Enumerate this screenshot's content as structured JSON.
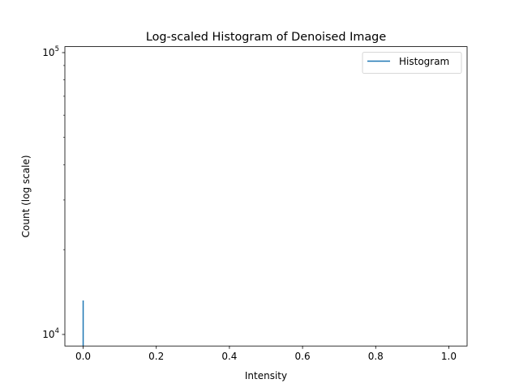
{
  "chart_data": {
    "type": "line",
    "title": "Log-scaled Histogram of Denoised Image",
    "xlabel": "Intensity",
    "ylabel": "Count (log scale)",
    "xlim": [
      -0.05,
      1.05
    ],
    "ylim": [
      9100,
      105000
    ],
    "yscale": "log",
    "grid": false,
    "legend_position": "upper right",
    "x_ticks": [
      {
        "value": 0.0,
        "label": "0.0"
      },
      {
        "value": 0.2,
        "label": "0.2"
      },
      {
        "value": 0.4,
        "label": "0.4"
      },
      {
        "value": 0.6,
        "label": "0.6"
      },
      {
        "value": 0.8,
        "label": "0.8"
      },
      {
        "value": 1.0,
        "label": "1.0"
      }
    ],
    "y_ticks": [
      {
        "value": 10000,
        "base": "10",
        "exp": "4"
      },
      {
        "value": 100000,
        "base": "10",
        "exp": "5"
      }
    ],
    "series": [
      {
        "name": "Histogram",
        "color": "#1f77b4",
        "x": [
          0.0,
          0.0
        ],
        "y": [
          9100,
          13200
        ]
      }
    ]
  }
}
